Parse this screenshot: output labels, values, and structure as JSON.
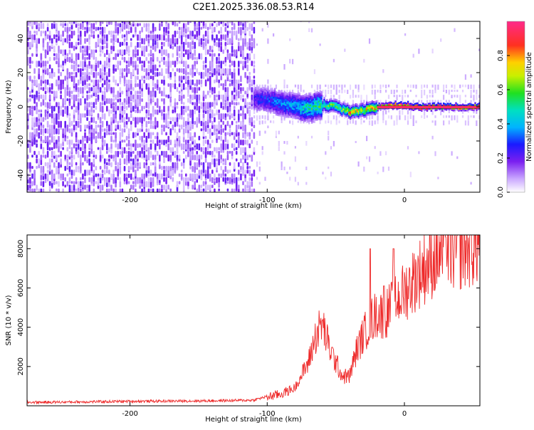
{
  "figure_title": "C2E1.2025.336.08.53.R14",
  "colorbar": {
    "label": "Normalized spectral amplitude",
    "ticks": [
      "0.0",
      "0.2",
      "0.4",
      "0.6",
      "0.8"
    ],
    "tick_values": [
      0.0,
      0.2,
      0.4,
      0.6,
      0.8
    ],
    "range": [
      0,
      1
    ]
  },
  "chart_data": [
    {
      "type": "heatmap",
      "title": "",
      "xlabel": "Height of straight line (km)",
      "ylabel": "Frequency (Hz)",
      "xlim": [
        -275,
        55
      ],
      "ylim": [
        -50,
        50
      ],
      "x_ticks": [
        -200,
        -100,
        0
      ],
      "x_tick_labels": [
        "-200",
        "-100",
        "0"
      ],
      "y_ticks": [
        -40,
        -20,
        0,
        20,
        40
      ],
      "y_tick_labels": [
        "-40",
        "-20",
        "0",
        "20",
        "40"
      ],
      "colormap": "rainbow (white-violet-blue-cyan-green-yellow-red-pink)",
      "description_regions": [
        {
          "x_range": [
            -275,
            -110
          ],
          "freq_range": [
            -50,
            50
          ],
          "amplitude": 0.1
        },
        {
          "x_range": [
            -110,
            -100
          ],
          "freq_range": [
            -2,
            10
          ],
          "amplitude": 0.25
        },
        {
          "x_range": [
            -100,
            -60
          ],
          "freq_range": [
            -5,
            6
          ],
          "amplitude": 0.35
        },
        {
          "x_range": [
            -60,
            -20
          ],
          "freq_range": [
            -3,
            3
          ],
          "amplitude": 0.6
        },
        {
          "x_range": [
            -20,
            55
          ],
          "freq_range": [
            -1,
            1
          ],
          "amplitude": 0.95
        }
      ],
      "ridge": {
        "x": [
          -110,
          -100,
          -90,
          -80,
          -70,
          -60,
          -50,
          -40,
          -30,
          -20,
          -10,
          0,
          10,
          20,
          30,
          40,
          55
        ],
        "freq": [
          5,
          4,
          2,
          0,
          -1,
          1,
          0,
          -3,
          -2,
          0,
          1,
          1,
          0,
          0,
          0,
          0,
          0
        ],
        "amplitude": [
          0.25,
          0.3,
          0.35,
          0.4,
          0.5,
          0.55,
          0.6,
          0.75,
          0.7,
          0.8,
          0.85,
          0.9,
          0.95,
          0.95,
          0.95,
          0.95,
          0.95
        ]
      },
      "grid": false
    },
    {
      "type": "line",
      "title": "",
      "xlabel": "Height of straight line (km)",
      "ylabel": "SNR (10 * v/v)",
      "xlim": [
        -275,
        55
      ],
      "ylim": [
        0,
        8700
      ],
      "x_ticks": [
        -200,
        -100,
        0
      ],
      "x_tick_labels": [
        "-200",
        "-100",
        "0"
      ],
      "y_ticks": [
        2000,
        4000,
        6000,
        8000
      ],
      "y_tick_labels": [
        "2000",
        "4000",
        "6000",
        "8000"
      ],
      "color": "#ff3030",
      "series": [
        {
          "x": [
            -275,
            -250,
            -225,
            -200,
            -175,
            -150,
            -125,
            -110,
            -100,
            -90,
            -80,
            -70,
            -65,
            -60,
            -55,
            -50,
            -45,
            -40,
            -35,
            -30,
            -25,
            -20,
            -15,
            -10,
            -5,
            0,
            10,
            20,
            30,
            40,
            50,
            55
          ],
          "y": [
            150,
            160,
            180,
            200,
            210,
            220,
            240,
            260,
            450,
            600,
            900,
            2200,
            3500,
            4200,
            3000,
            2200,
            1500,
            1500,
            2800,
            3600,
            4300,
            4700,
            4600,
            5000,
            5400,
            5800,
            6700,
            7400,
            7800,
            8000,
            8200,
            8300
          ]
        }
      ],
      "spikes": [
        {
          "x": -25,
          "y": 8000
        },
        {
          "x": -8,
          "y": 8000
        },
        {
          "x": -15,
          "y": 6100
        },
        {
          "x": 30,
          "y": 8600
        }
      ],
      "grid": false
    }
  ]
}
